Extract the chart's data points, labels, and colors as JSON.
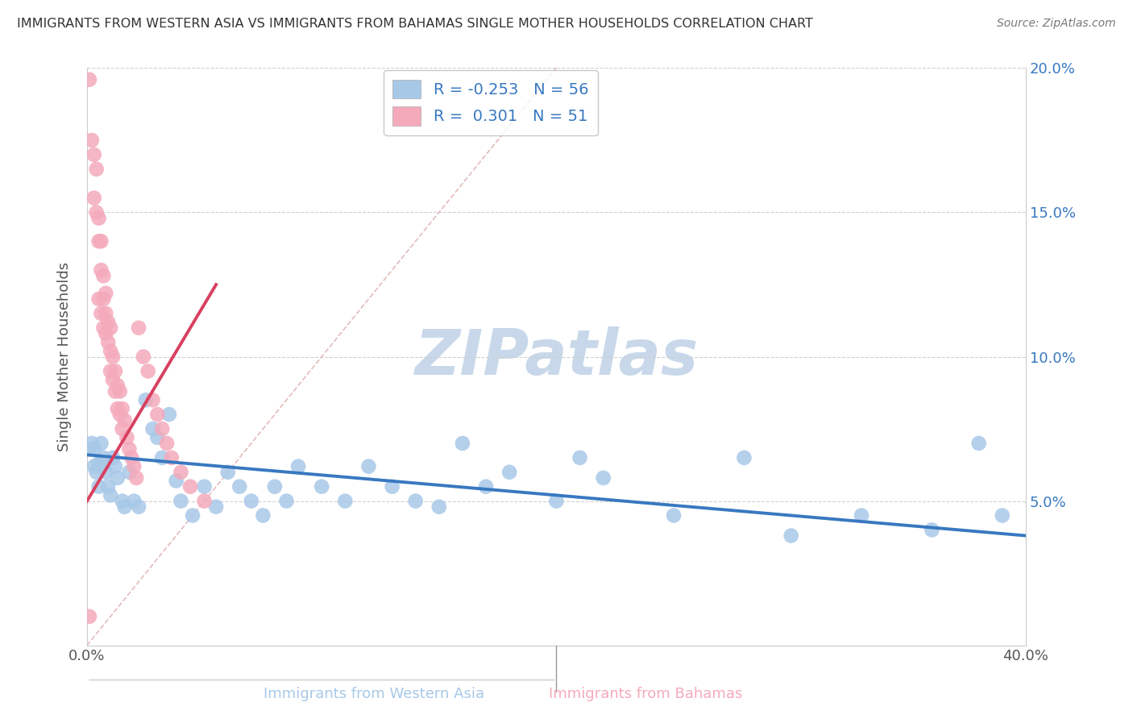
{
  "title": "IMMIGRANTS FROM WESTERN ASIA VS IMMIGRANTS FROM BAHAMAS SINGLE MOTHER HOUSEHOLDS CORRELATION CHART",
  "source": "Source: ZipAtlas.com",
  "xlabel_blue": "Immigrants from Western Asia",
  "xlabel_pink": "Immigrants from Bahamas",
  "ylabel": "Single Mother Households",
  "xlim": [
    0.0,
    0.4
  ],
  "ylim": [
    0.0,
    0.2
  ],
  "legend_R_blue": "-0.253",
  "legend_N_blue": "56",
  "legend_R_pink": "0.301",
  "legend_N_pink": "51",
  "color_blue": "#a8c8e8",
  "color_pink": "#f4aabb",
  "color_line_blue": "#3878c0",
  "color_line_pink": "#d84060",
  "watermark": "ZIPatlas",
  "watermark_color": "#c8d8ea",
  "blue_x": [
    0.001,
    0.002,
    0.003,
    0.003,
    0.004,
    0.005,
    0.005,
    0.006,
    0.007,
    0.008,
    0.009,
    0.01,
    0.011,
    0.012,
    0.013,
    0.015,
    0.016,
    0.018,
    0.02,
    0.022,
    0.025,
    0.028,
    0.03,
    0.032,
    0.035,
    0.038,
    0.04,
    0.045,
    0.05,
    0.055,
    0.06,
    0.065,
    0.07,
    0.075,
    0.08,
    0.085,
    0.09,
    0.1,
    0.11,
    0.12,
    0.13,
    0.14,
    0.15,
    0.16,
    0.17,
    0.18,
    0.2,
    0.21,
    0.22,
    0.25,
    0.28,
    0.3,
    0.33,
    0.36,
    0.38,
    0.39
  ],
  "blue_y": [
    0.068,
    0.07,
    0.068,
    0.062,
    0.06,
    0.063,
    0.055,
    0.07,
    0.065,
    0.06,
    0.055,
    0.052,
    0.065,
    0.062,
    0.058,
    0.05,
    0.048,
    0.06,
    0.05,
    0.048,
    0.085,
    0.075,
    0.072,
    0.065,
    0.08,
    0.057,
    0.05,
    0.045,
    0.055,
    0.048,
    0.06,
    0.055,
    0.05,
    0.045,
    0.055,
    0.05,
    0.062,
    0.055,
    0.05,
    0.062,
    0.055,
    0.05,
    0.048,
    0.07,
    0.055,
    0.06,
    0.05,
    0.065,
    0.058,
    0.045,
    0.065,
    0.038,
    0.045,
    0.04,
    0.07,
    0.045
  ],
  "pink_x": [
    0.001,
    0.001,
    0.002,
    0.003,
    0.003,
    0.004,
    0.004,
    0.005,
    0.005,
    0.005,
    0.006,
    0.006,
    0.006,
    0.007,
    0.007,
    0.007,
    0.008,
    0.008,
    0.008,
    0.009,
    0.009,
    0.01,
    0.01,
    0.01,
    0.011,
    0.011,
    0.012,
    0.012,
    0.013,
    0.013,
    0.014,
    0.014,
    0.015,
    0.015,
    0.016,
    0.017,
    0.018,
    0.019,
    0.02,
    0.021,
    0.022,
    0.024,
    0.026,
    0.028,
    0.03,
    0.032,
    0.034,
    0.036,
    0.04,
    0.044,
    0.05
  ],
  "pink_y": [
    0.01,
    0.196,
    0.175,
    0.17,
    0.155,
    0.165,
    0.15,
    0.148,
    0.14,
    0.12,
    0.14,
    0.13,
    0.115,
    0.128,
    0.12,
    0.11,
    0.122,
    0.115,
    0.108,
    0.112,
    0.105,
    0.11,
    0.102,
    0.095,
    0.1,
    0.092,
    0.095,
    0.088,
    0.09,
    0.082,
    0.088,
    0.08,
    0.082,
    0.075,
    0.078,
    0.072,
    0.068,
    0.065,
    0.062,
    0.058,
    0.11,
    0.1,
    0.095,
    0.085,
    0.08,
    0.075,
    0.07,
    0.065,
    0.06,
    0.055,
    0.05
  ],
  "blue_trend_x": [
    0.0,
    0.4
  ],
  "blue_trend_y": [
    0.066,
    0.038
  ],
  "pink_trend_x": [
    0.0,
    0.055
  ],
  "pink_trend_y": [
    0.05,
    0.125
  ]
}
